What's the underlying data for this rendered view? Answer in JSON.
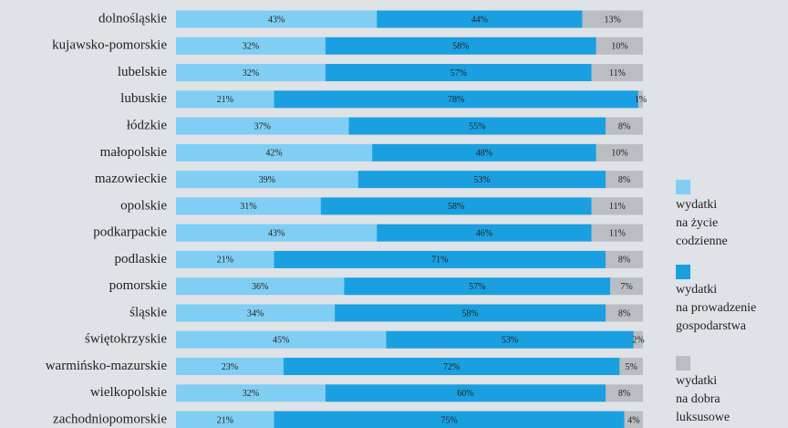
{
  "chart_data": {
    "type": "stacked-bar-horizontal",
    "categories": [
      "dolnośląskie",
      "kujawsko-pomorskie",
      "lubelskie",
      "lubuskie",
      "łódzkie",
      "małopolskie",
      "mazowieckie",
      "opolskie",
      "podkarpackie",
      "podlaskie",
      "pomorskie",
      "śląskie",
      "świętokrzyskie",
      "warmińsko-mazurskie",
      "wielkopolskie",
      "zachodniopomorskie"
    ],
    "series": [
      {
        "name": "wydatki\nna życie\ncodzienne",
        "color": "#80cef3",
        "values": [
          43,
          32,
          32,
          21,
          37,
          42,
          39,
          31,
          43,
          21,
          36,
          34,
          45,
          23,
          32,
          21
        ],
        "value_labels": [
          "43%",
          "32%",
          "32%",
          "21%",
          "37%",
          "42%",
          "39%",
          "31%",
          "43%",
          "21%",
          "36%",
          "34%",
          "45%",
          "23%",
          "32%",
          "21%"
        ]
      },
      {
        "name": "wydatki\nna prowadzenie\ngospodarstwa",
        "color": "#1aa0e1",
        "values": [
          44,
          58,
          57,
          78,
          55,
          48,
          53,
          58,
          46,
          71,
          57,
          58,
          53,
          72,
          60,
          75
        ],
        "value_labels": [
          "44%",
          "58%",
          "57%",
          "78%",
          "55%",
          "48%",
          "53%",
          "58%",
          "46%",
          "71%",
          "57%",
          "58%",
          "53%",
          "72%",
          "60%",
          "75%"
        ]
      },
      {
        "name": "wydatki\nna dobra\nluksusowe",
        "color": "#babdc1",
        "values": [
          13,
          10,
          11,
          1,
          8,
          10,
          8,
          11,
          11,
          8,
          7,
          8,
          2,
          5,
          8,
          4
        ],
        "value_labels": [
          "13%",
          "10%",
          "11%",
          "1%",
          "8%",
          "10%",
          "8%",
          "11%",
          "11%",
          "8%",
          "7%",
          "8%",
          "2%",
          "5%",
          "8%",
          "4%"
        ]
      }
    ],
    "xlim": [
      0,
      100
    ]
  }
}
